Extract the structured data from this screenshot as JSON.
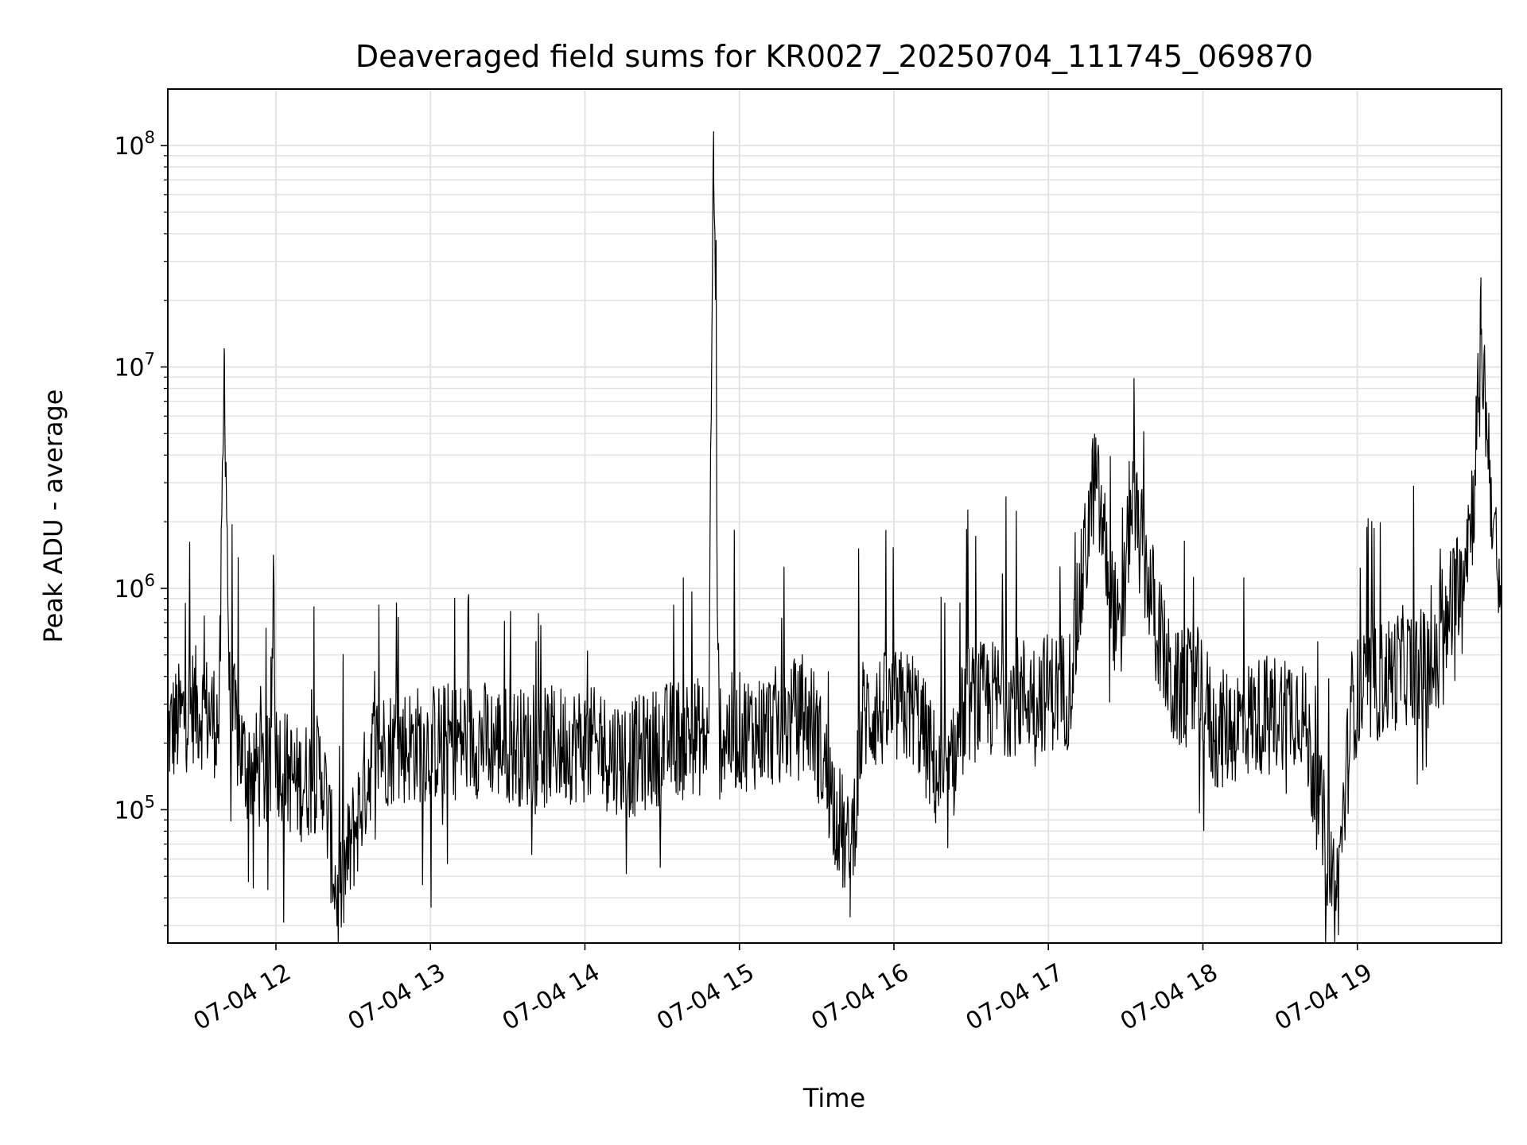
{
  "chart_data": {
    "type": "line",
    "title": "Deaveraged field sums for KR0027_20250704_111745_069870",
    "xlabel": "Time",
    "ylabel": "Peak ADU - average",
    "yscale": "log",
    "grid": true,
    "legend": "none",
    "line_color": "#000000",
    "grid_color": "#e3e3e3",
    "xlim": [
      "2025-07-04 11:18",
      "2025-07-04 19:56"
    ],
    "ylim": [
      25000,
      180000000
    ],
    "x_ticks": [
      {
        "t": "2025-07-04 12:00",
        "label": "07-04 12"
      },
      {
        "t": "2025-07-04 13:00",
        "label": "07-04 13"
      },
      {
        "t": "2025-07-04 14:00",
        "label": "07-04 14"
      },
      {
        "t": "2025-07-04 15:00",
        "label": "07-04 15"
      },
      {
        "t": "2025-07-04 16:00",
        "label": "07-04 16"
      },
      {
        "t": "2025-07-04 17:00",
        "label": "07-04 17"
      },
      {
        "t": "2025-07-04 18:00",
        "label": "07-04 18"
      },
      {
        "t": "2025-07-04 19:00",
        "label": "07-04 19"
      }
    ],
    "y_ticks": [
      {
        "value": 100000,
        "base": "10",
        "exp": "5"
      },
      {
        "value": 1000000,
        "base": "10",
        "exp": "6"
      },
      {
        "value": 10000000,
        "base": "10",
        "exp": "7"
      },
      {
        "value": 100000000,
        "base": "10",
        "exp": "8"
      }
    ],
    "series": [
      {
        "x": [
          "2025-07-04 11:18",
          "2025-07-04 11:28",
          "2025-07-04 11:38",
          "2025-07-04 11:40",
          "2025-07-04 11:42",
          "2025-07-04 11:48",
          "2025-07-04 11:58",
          "2025-07-04 11:59",
          "2025-07-04 12:00",
          "2025-07-04 12:08",
          "2025-07-04 12:18",
          "2025-07-04 12:24",
          "2025-07-04 12:38",
          "2025-07-04 12:58",
          "2025-07-04 13:18",
          "2025-07-04 13:38",
          "2025-07-04 13:58",
          "2025-07-04 14:18",
          "2025-07-04 14:38",
          "2025-07-04 14:48",
          "2025-07-04 14:50",
          "2025-07-04 14:52",
          "2025-07-04 15:08",
          "2025-07-04 15:28",
          "2025-07-04 15:43",
          "2025-07-04 15:48",
          "2025-07-04 16:08",
          "2025-07-04 16:20",
          "2025-07-04 16:28",
          "2025-07-04 16:48",
          "2025-07-04 17:08",
          "2025-07-04 17:18",
          "2025-07-04 17:28",
          "2025-07-04 17:32",
          "2025-07-04 17:48",
          "2025-07-04 18:00",
          "2025-07-04 18:04",
          "2025-07-04 18:18",
          "2025-07-04 18:38",
          "2025-07-04 18:52",
          "2025-07-04 18:58",
          "2025-07-04 19:18",
          "2025-07-04 19:32",
          "2025-07-04 19:45",
          "2025-07-04 19:48",
          "2025-07-04 19:56"
        ],
        "y": [
          220000,
          300000,
          250000,
          11500000,
          300000,
          160000,
          140000,
          1300000,
          180000,
          130000,
          150000,
          38000,
          190000,
          200000,
          210000,
          190000,
          200000,
          170000,
          220000,
          210000,
          116000000,
          220000,
          230000,
          260000,
          58000,
          270000,
          290000,
          110000,
          300000,
          330000,
          350000,
          3200000,
          500000,
          2600000,
          340000,
          360000,
          220000,
          260000,
          300000,
          40000,
          310000,
          450000,
          430000,
          2400000,
          14000000,
          560000
        ]
      }
    ]
  }
}
